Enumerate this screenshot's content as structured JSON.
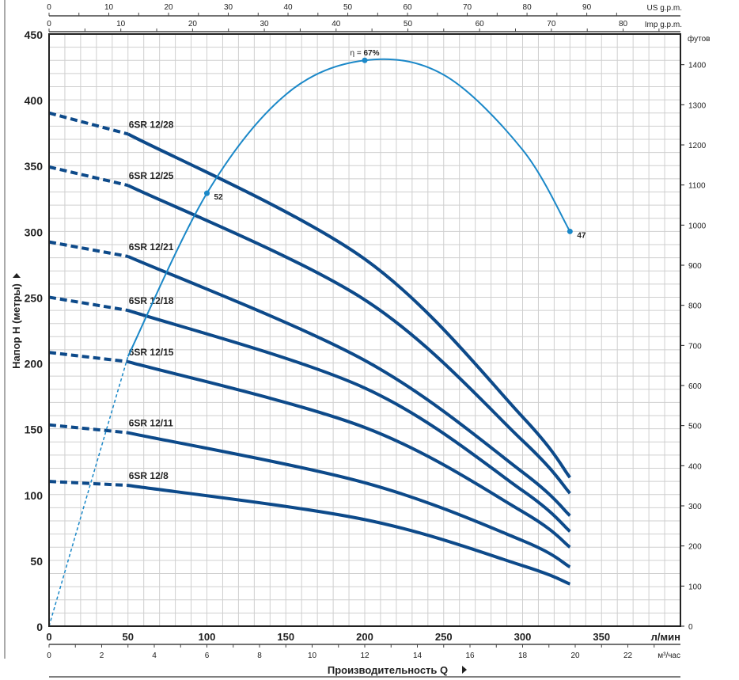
{
  "chart_data": {
    "type": "line",
    "xlabel": "Производительность Q",
    "ylabel": "Напор H (метры)",
    "x_unit": "л/мин",
    "xlim": [
      0,
      400
    ],
    "ylim": [
      0,
      450
    ],
    "x_ticks": [
      0,
      50,
      100,
      150,
      200,
      250,
      300,
      350
    ],
    "y_ticks": [
      0,
      50,
      100,
      150,
      200,
      250,
      300,
      350,
      400,
      450
    ],
    "grid": true,
    "secondary_axes": {
      "us_gpm": {
        "label": "US g.p.m.",
        "ticks": [
          0,
          10,
          20,
          30,
          40,
          50,
          60,
          70,
          80,
          90
        ]
      },
      "imp_gpm": {
        "label": "Imp g.p.m.",
        "ticks": [
          0,
          10,
          20,
          30,
          40,
          50,
          60,
          70,
          80
        ]
      },
      "m3h": {
        "label": "м³/час",
        "ticks": [
          0,
          2,
          4,
          6,
          8,
          10,
          12,
          14,
          16,
          18,
          20,
          22
        ]
      },
      "feet": {
        "label": "футов",
        "ticks": [
          0,
          100,
          200,
          300,
          400,
          500,
          600,
          700,
          800,
          900,
          1000,
          1100,
          1200,
          1300,
          1400
        ]
      }
    },
    "x": [
      0,
      50,
      200,
      300,
      330
    ],
    "dashed_below_x": 50,
    "series": [
      {
        "name": "6SR 12/28",
        "values": [
          390,
          374,
          279,
          159,
          113
        ]
      },
      {
        "name": "6SR 12/25",
        "values": [
          349,
          335,
          248,
          141,
          101
        ]
      },
      {
        "name": "6SR 12/21",
        "values": [
          292,
          281,
          202,
          117,
          84
        ]
      },
      {
        "name": "6SR 12/18",
        "values": [
          250,
          240,
          181,
          103,
          72
        ]
      },
      {
        "name": "6SR 12/15",
        "values": [
          208,
          201,
          151,
          87,
          60
        ]
      },
      {
        "name": "6SR 12/11",
        "values": [
          153,
          147,
          109,
          65,
          45
        ]
      },
      {
        "name": "6SR 12/8",
        "values": [
          110,
          107,
          81,
          46,
          32
        ]
      }
    ],
    "efficiency_curve": {
      "x": [
        0,
        25,
        50,
        100,
        150,
        200,
        250,
        300,
        330
      ],
      "y": [
        0,
        103,
        205,
        329,
        404,
        430,
        419,
        362,
        300
      ],
      "dashed_below_x": 50,
      "points": [
        {
          "x": 100,
          "y": 329,
          "label": "52"
        },
        {
          "x": 200,
          "y": 430,
          "label_prefix": "η = ",
          "label": "67%"
        },
        {
          "x": 330,
          "y": 300,
          "label": "47"
        }
      ]
    },
    "colors": {
      "curves": "#0d4a8a",
      "efficiency": "#1b88c8",
      "grid": "#cfcfcf"
    }
  }
}
